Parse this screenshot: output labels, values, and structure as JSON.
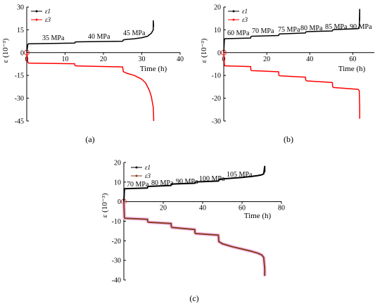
{
  "figure": {
    "panel_labels": [
      "(a)",
      "(b)",
      "(c)"
    ]
  },
  "chart_data": [
    {
      "panel": "(a)",
      "type": "line",
      "xlabel": "Time (h)",
      "ylabel": "ε (10⁻³)",
      "xlim": [
        0,
        40
      ],
      "ylim": [
        -45,
        30
      ],
      "xticks": [
        0,
        10,
        20,
        30,
        40
      ],
      "yticks": [
        30,
        15,
        0,
        -15,
        -30,
        -45
      ],
      "x_tick_labels": [
        "0",
        "10",
        "20",
        "30",
        "40"
      ],
      "y_tick_labels": [
        "30",
        "15",
        "0",
        "-15",
        "-30",
        "-45"
      ],
      "legend": [
        "ε1",
        "ε3"
      ],
      "legend_position": "top-left",
      "annotations": [
        "35 MPa",
        "40 MPa",
        "45 MPa"
      ],
      "series": [
        {
          "name": "ε1",
          "color": "#000000",
          "x": [
            0,
            0.3,
            0.5,
            12.5,
            12.6,
            13,
            25,
            25.2,
            26,
            28,
            30,
            31.5,
            32.5,
            33,
            33,
            33.1
          ],
          "y": [
            0,
            5.5,
            5.8,
            6.3,
            6.9,
            7.1,
            7.5,
            8.4,
            8.7,
            9.1,
            9.8,
            10.8,
            12.8,
            15,
            21,
            17
          ]
        },
        {
          "name": "ε3",
          "color": "#ff0000",
          "x": [
            0,
            0.3,
            0.5,
            12.5,
            12.6,
            13,
            25,
            25.2,
            26,
            28,
            30,
            31,
            32,
            32.5,
            33,
            33.1,
            33.1
          ],
          "y": [
            0,
            -6.5,
            -6.9,
            -7.3,
            -8.5,
            -8.8,
            -9.4,
            -12.5,
            -13.5,
            -15,
            -17.5,
            -20,
            -25,
            -29,
            -36,
            -43,
            -45
          ]
        }
      ]
    },
    {
      "panel": "(b)",
      "type": "line",
      "xlabel": "Time (h)",
      "ylabel": "ε (10⁻³)",
      "xlim": [
        0,
        70
      ],
      "ylim": [
        -30,
        20
      ],
      "xticks": [
        0,
        20,
        40,
        60
      ],
      "yticks": [
        20,
        10,
        0,
        -10,
        -20,
        -30
      ],
      "x_tick_labels": [
        "0",
        "20",
        "40",
        "60"
      ],
      "y_tick_labels": [
        "20",
        "10",
        "0",
        "-10",
        "-20",
        "-30"
      ],
      "legend": [
        "ε1",
        "ε3"
      ],
      "legend_position": "top-left",
      "annotations": [
        "60 MPa",
        "70 MPa",
        "75 MPa",
        "80 MPa",
        "85 MPa",
        "90 MPa"
      ],
      "series": [
        {
          "name": "ε1",
          "color": "#000000",
          "x": [
            0,
            0.3,
            0.5,
            12.5,
            12.6,
            13,
            25.5,
            25.6,
            26,
            38,
            38.1,
            38.5,
            50.5,
            50.6,
            51,
            62.5,
            63,
            63.2,
            63.2
          ],
          "y": [
            0,
            5.6,
            6.1,
            6.4,
            6.9,
            7.2,
            7.5,
            8,
            8.2,
            8.6,
            9,
            9.2,
            9.5,
            9.9,
            10.1,
            10.5,
            11.5,
            19,
            14
          ]
        },
        {
          "name": "ε3",
          "color": "#ff0000",
          "x": [
            0,
            0.3,
            0.5,
            12.5,
            12.6,
            13,
            25.5,
            25.6,
            26,
            38,
            38.1,
            38.5,
            50.5,
            50.6,
            51,
            62.5,
            63,
            63.2,
            63.2
          ],
          "y": [
            0,
            -5.2,
            -5.8,
            -6.1,
            -7.6,
            -7.9,
            -8.4,
            -9.9,
            -10.2,
            -10.8,
            -12,
            -12.4,
            -13.1,
            -14.8,
            -15.3,
            -16.1,
            -16.8,
            -24,
            -29
          ]
        }
      ]
    },
    {
      "panel": "(c)",
      "type": "line",
      "xlabel": "Time (h)",
      "ylabel": "ε (10⁻³)",
      "xlim": [
        0,
        80
      ],
      "ylim": [
        -40,
        20
      ],
      "xticks": [
        0,
        20,
        40,
        60,
        80
      ],
      "yticks": [
        20,
        10,
        0,
        -10,
        -20,
        -30,
        -40
      ],
      "x_tick_labels": [
        "0",
        "20",
        "40",
        "60",
        "80"
      ],
      "y_tick_labels": [
        "20",
        "10",
        "0",
        "-10",
        "-20",
        "-30",
        "-40"
      ],
      "legend": [
        "ε1",
        "ε3"
      ],
      "legend_position": "top-left",
      "annotations": [
        "70 MPa",
        "80 MPa",
        "90 MPa",
        "100 MPa",
        "105 MPa"
      ],
      "series": [
        {
          "name": "ε1",
          "color": "#000000",
          "x": [
            0,
            0.3,
            0.5,
            12,
            12.1,
            12.5,
            24,
            24.1,
            24.5,
            36,
            36.1,
            36.5,
            48,
            48.2,
            50,
            55,
            60,
            65,
            68,
            70,
            71,
            71.5,
            71.5
          ],
          "y": [
            0,
            6.2,
            6.6,
            7,
            7.5,
            7.8,
            8.3,
            8.8,
            9,
            9.4,
            9.9,
            10.1,
            10.5,
            11.2,
            11.6,
            12,
            12.4,
            12.9,
            13.3,
            13.7,
            14.2,
            18,
            15
          ]
        },
        {
          "name": "ε3",
          "color": "#8b3a1a",
          "x": [
            0,
            0.3,
            0.5,
            12,
            12.1,
            12.5,
            24,
            24.1,
            24.5,
            36,
            36.1,
            36.5,
            48,
            48.2,
            50,
            55,
            60,
            65,
            68,
            70,
            71,
            71.5,
            71.5
          ],
          "y": [
            0,
            -8.2,
            -8.5,
            -9,
            -10.1,
            -10.5,
            -11.2,
            -12.8,
            -13.2,
            -14.2,
            -15.9,
            -16.3,
            -17.1,
            -20.4,
            -21.5,
            -23,
            -24.2,
            -25.4,
            -26.3,
            -27.2,
            -28.5,
            -34,
            -38
          ]
        }
      ]
    }
  ]
}
